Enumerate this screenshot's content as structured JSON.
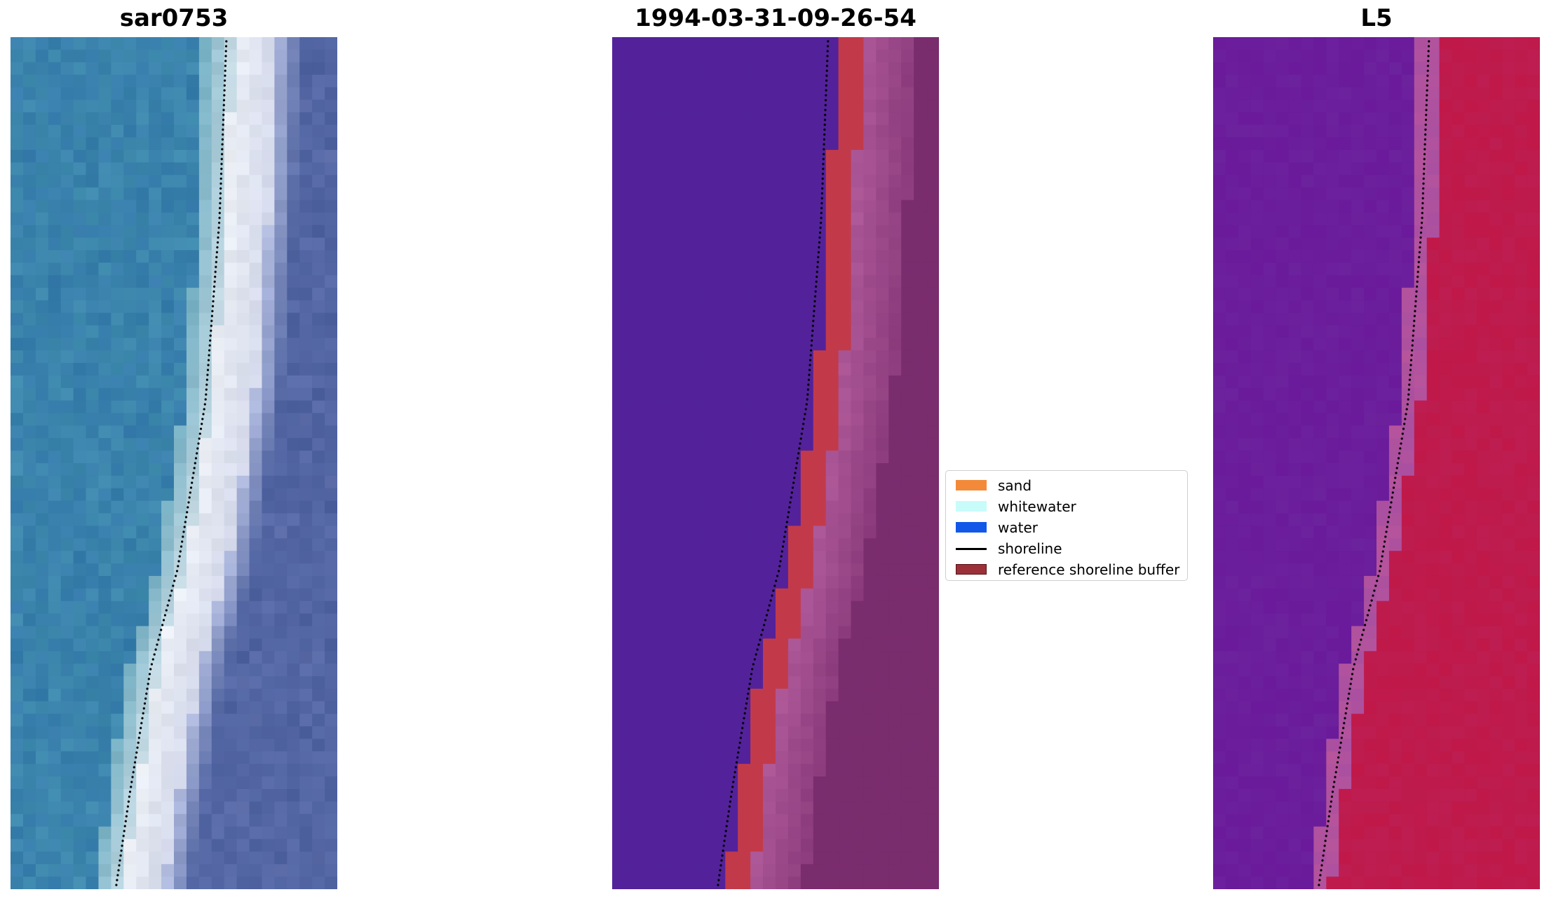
{
  "panels": [
    {
      "title": "sar0753",
      "kind": "rgb"
    },
    {
      "title": "1994-03-31-09-26-54",
      "kind": "classified"
    },
    {
      "title": "L5",
      "kind": "index"
    }
  ],
  "legend": {
    "items": [
      {
        "label": "sand",
        "type": "patch",
        "color": "#f28a3a"
      },
      {
        "label": "whitewater",
        "type": "patch",
        "color": "#c8fcfb"
      },
      {
        "label": "water",
        "type": "patch",
        "color": "#1158e8"
      },
      {
        "label": "shoreline",
        "type": "line",
        "color": "#000000"
      },
      {
        "label": "reference shoreline buffer",
        "type": "patch",
        "color": "#9c3038",
        "edge": "#5a1015"
      }
    ]
  },
  "colors": {
    "water_class": "#53229a",
    "buffer_overlay": "#c23a4a",
    "sand_overlay": "#b05a9a",
    "dry_sand": "#7a2d6e",
    "index_low": "#6a1a9a",
    "index_high": "#c01848"
  }
}
